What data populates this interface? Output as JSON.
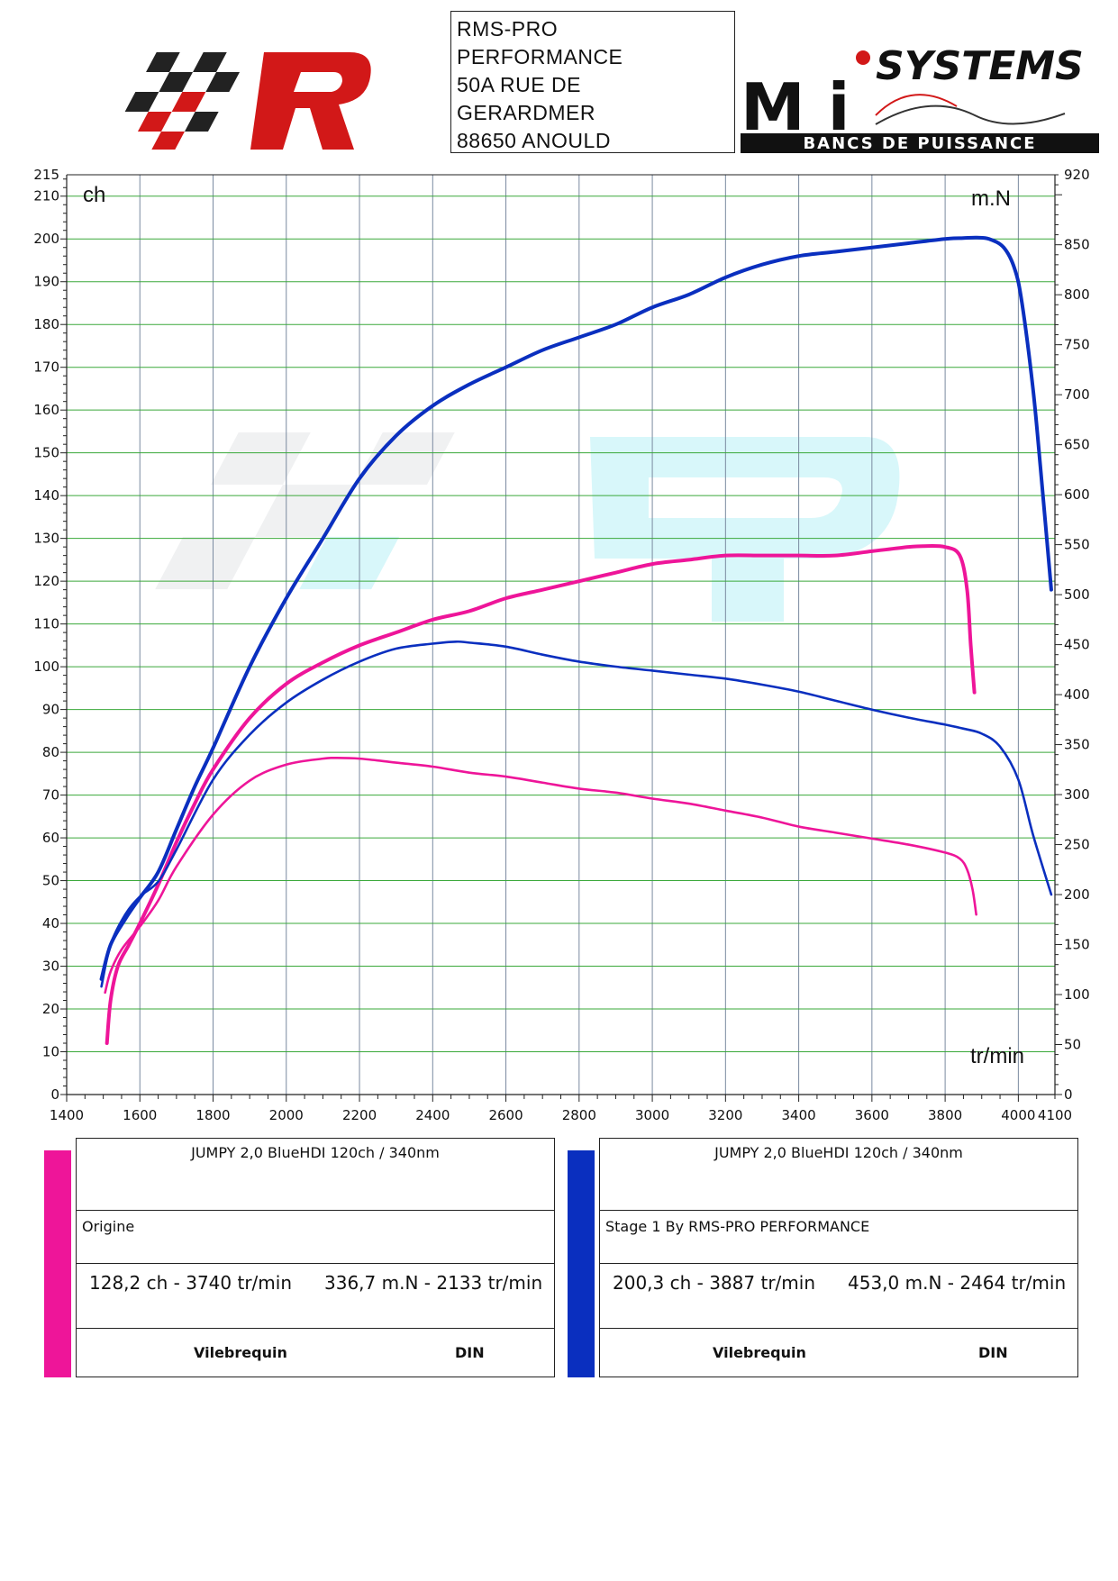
{
  "header": {
    "address_lines": [
      "RMS-PRO",
      "PERFORMANCE",
      "50A RUE DE",
      "GERARDMER",
      "88650 ANOULD"
    ],
    "brand_right_top": "SYSTEMS",
    "brand_right_letters": "M i",
    "brand_right_bottom": "BANCS DE PUISSANCE"
  },
  "colors": {
    "origine": "#ee1599",
    "stage1": "#0a2fbf",
    "grid_h": "#3aa83a",
    "grid_v": "#7a8aa0"
  },
  "chart_data": {
    "type": "line",
    "left_axis_label": "ch",
    "right_axis_label": "m.N",
    "x_axis_label": "tr/min",
    "xlim": [
      1400,
      4100
    ],
    "ylim_left": [
      0,
      215
    ],
    "ylim_right": [
      0,
      920
    ],
    "x_ticks": [
      "1400",
      "1600",
      "1800",
      "2000",
      "2200",
      "2400",
      "2600",
      "2800",
      "3000",
      "3200",
      "3400",
      "3600",
      "3800",
      "4000",
      "4100"
    ],
    "y_left_ticks": [
      "0",
      "10",
      "20",
      "30",
      "40",
      "50",
      "60",
      "70",
      "80",
      "90",
      "100",
      "110",
      "120",
      "130",
      "140",
      "150",
      "160",
      "170",
      "180",
      "190",
      "200",
      "210",
      "215"
    ],
    "y_right_ticks": [
      "0",
      "50",
      "100",
      "150",
      "200",
      "250",
      "300",
      "350",
      "400",
      "450",
      "500",
      "550",
      "600",
      "650",
      "700",
      "750",
      "800",
      "850",
      "920"
    ],
    "series": [
      {
        "name": "Origine",
        "quantity": "power",
        "axis": "left",
        "color": "#ee1599",
        "x": [
          1510,
          1520,
          1540,
          1570,
          1600,
          1650,
          1700,
          1750,
          1800,
          1900,
          2000,
          2100,
          2200,
          2300,
          2400,
          2500,
          2600,
          2700,
          2800,
          2900,
          3000,
          3100,
          3200,
          3300,
          3400,
          3500,
          3600,
          3700,
          3740,
          3800,
          3840,
          3860,
          3870,
          3880
        ],
        "y": [
          12,
          22,
          30,
          35,
          40,
          49,
          59,
          68,
          76,
          88,
          96,
          101,
          105,
          108,
          111,
          113,
          116,
          118,
          120,
          122,
          124,
          125,
          126,
          126,
          126,
          126,
          127,
          128,
          128.2,
          128,
          126,
          118,
          105,
          94
        ]
      },
      {
        "name": "Stage 1 By RMS-PRO PERFORMANCE",
        "quantity": "power",
        "axis": "left",
        "color": "#0a2fbf",
        "x": [
          1495,
          1520,
          1560,
          1600,
          1650,
          1700,
          1750,
          1800,
          1900,
          2000,
          2100,
          2200,
          2300,
          2400,
          2500,
          2600,
          2700,
          2800,
          2900,
          3000,
          3100,
          3200,
          3300,
          3400,
          3500,
          3600,
          3700,
          3800,
          3850,
          3887,
          3920,
          3960,
          3990,
          4010,
          4040,
          4060,
          4090
        ],
        "y": [
          27,
          35,
          41,
          46,
          52,
          62,
          72,
          81,
          100,
          116,
          130,
          144,
          154,
          161,
          166,
          170,
          174,
          177,
          180,
          184,
          187,
          191,
          194,
          196,
          197,
          198,
          199,
          200,
          200.2,
          200.3,
          200,
          198,
          193,
          185,
          165,
          147,
          118
        ]
      },
      {
        "name": "Origine",
        "quantity": "torque",
        "axis": "right",
        "color": "#ee1599",
        "x": [
          1505,
          1520,
          1550,
          1600,
          1650,
          1700,
          1800,
          1900,
          2000,
          2100,
          2133,
          2200,
          2300,
          2400,
          2500,
          2600,
          2700,
          2800,
          2900,
          3000,
          3100,
          3200,
          3300,
          3400,
          3500,
          3600,
          3700,
          3800,
          3840,
          3860,
          3875,
          3885
        ],
        "y": [
          102,
          123,
          145,
          168,
          194,
          228,
          280,
          314,
          330,
          336,
          336.7,
          336,
          332,
          328,
          322,
          318,
          312,
          306,
          302,
          296,
          291,
          284,
          277,
          268,
          262,
          256,
          250,
          242,
          236,
          225,
          205,
          180
        ]
      },
      {
        "name": "Stage 1 By RMS-PRO PERFORMANCE",
        "quantity": "torque",
        "axis": "right",
        "color": "#0a2fbf",
        "x": [
          1495,
          1520,
          1560,
          1600,
          1650,
          1700,
          1800,
          1900,
          2000,
          2100,
          2200,
          2300,
          2400,
          2464,
          2500,
          2600,
          2700,
          2800,
          2900,
          3000,
          3100,
          3200,
          3300,
          3400,
          3500,
          3600,
          3700,
          3800,
          3850,
          3900,
          3950,
          4000,
          4040,
          4090
        ],
        "y": [
          108,
          150,
          180,
          198,
          213,
          245,
          315,
          360,
          392,
          415,
          433,
          446,
          451,
          453,
          452,
          448,
          440,
          433,
          428,
          424,
          420,
          416,
          410,
          403,
          394,
          385,
          377,
          370,
          366,
          361,
          348,
          315,
          260,
          200
        ]
      }
    ]
  },
  "legend": [
    {
      "title": "JUMPY 2,0 BlueHDI 120ch / 340nm",
      "label": "Origine",
      "power_result": "128,2 ch - 3740 tr/min",
      "torque_result": "336,7 m.N - 2133 tr/min",
      "left_footer": "Vilebrequin",
      "right_footer": "DIN"
    },
    {
      "title": "JUMPY 2,0 BlueHDI 120ch / 340nm",
      "label": "Stage 1 By RMS-PRO PERFORMANCE",
      "power_result": "200,3 ch - 3887 tr/min",
      "torque_result": "453,0 m.N - 2464 tr/min",
      "left_footer": "Vilebrequin",
      "right_footer": "DIN"
    }
  ]
}
